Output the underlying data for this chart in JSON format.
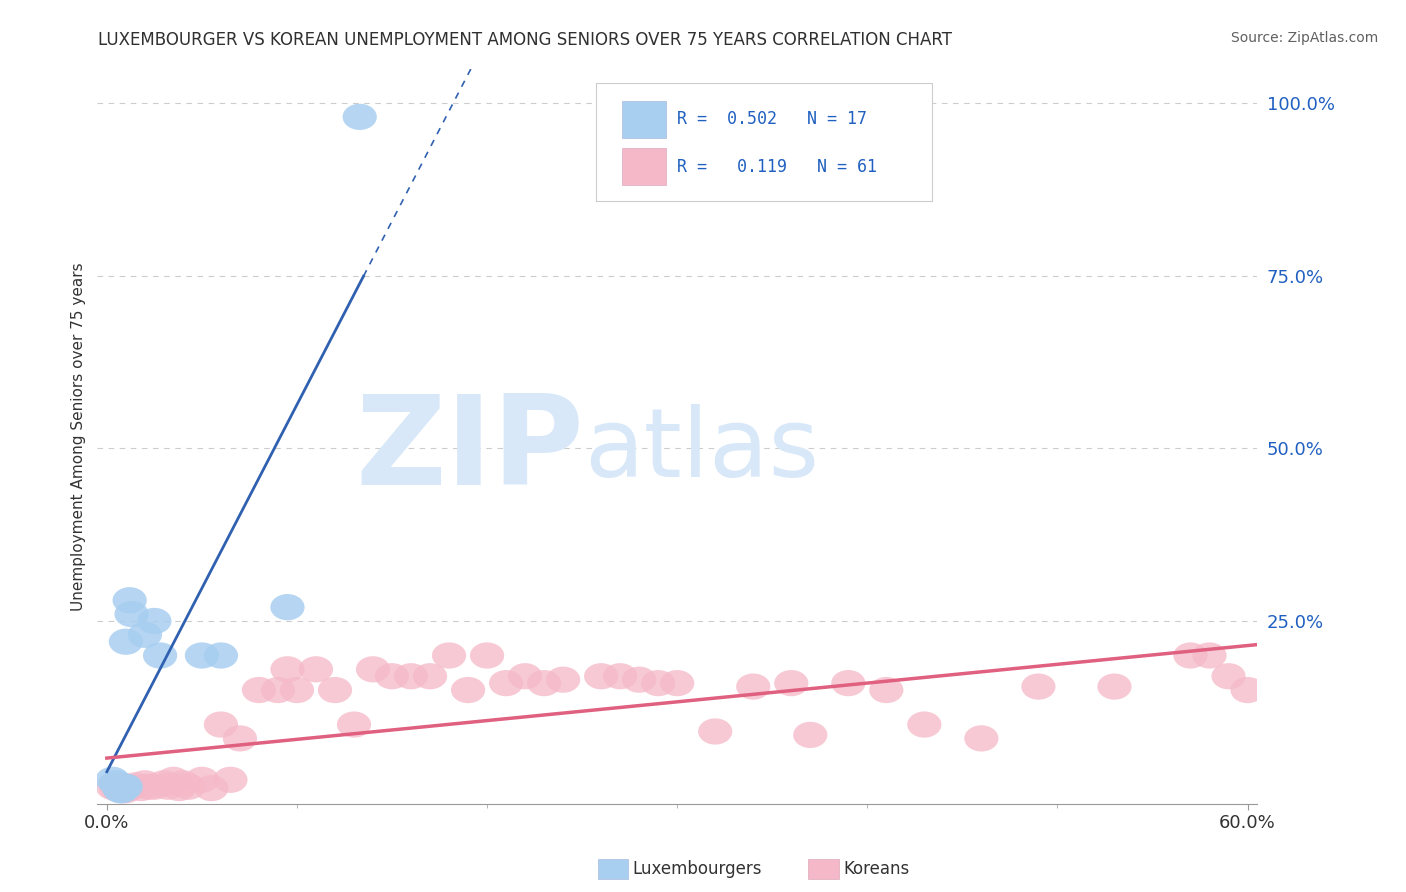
{
  "title": "LUXEMBOURGER VS KOREAN UNEMPLOYMENT AMONG SENIORS OVER 75 YEARS CORRELATION CHART",
  "source": "Source: ZipAtlas.com",
  "ylabel": "Unemployment Among Seniors over 75 years",
  "xlim": [
    -0.005,
    0.605
  ],
  "ylim": [
    -0.015,
    1.05
  ],
  "xtick_positions": [
    0.0,
    0.6
  ],
  "xticklabels": [
    "0.0%",
    "60.0%"
  ],
  "ytick_positions": [
    0.25,
    0.5,
    0.75,
    1.0
  ],
  "yticklabels_right": [
    "25.0%",
    "50.0%",
    "75.0%",
    "100.0%"
  ],
  "lux_R": "0.502",
  "lux_N": "17",
  "kor_R": "0.119",
  "kor_N": "61",
  "lux_color": "#A8CEF0",
  "kor_color": "#F5B8C8",
  "lux_line_color": "#3060B0",
  "kor_line_color": "#E06080",
  "watermark_zip": "ZIP",
  "watermark_atlas": "atlas",
  "watermark_color": "#D8E8F8",
  "gridline_color": "#CCCCCC",
  "title_color": "#303030",
  "source_color": "#606060",
  "lux_scatter_x": [
    0.003,
    0.005,
    0.006,
    0.007,
    0.008,
    0.009,
    0.01,
    0.01,
    0.012,
    0.013,
    0.02,
    0.025,
    0.028,
    0.05,
    0.06,
    0.095,
    0.133
  ],
  "lux_scatter_y": [
    0.02,
    0.015,
    0.01,
    0.005,
    0.005,
    0.01,
    0.22,
    0.01,
    0.28,
    0.26,
    0.23,
    0.25,
    0.2,
    0.2,
    0.2,
    0.27,
    0.98
  ],
  "kor_scatter_x": [
    0.003,
    0.005,
    0.007,
    0.008,
    0.009,
    0.01,
    0.01,
    0.012,
    0.015,
    0.018,
    0.02,
    0.022,
    0.025,
    0.03,
    0.032,
    0.035,
    0.038,
    0.04,
    0.043,
    0.05,
    0.055,
    0.06,
    0.065,
    0.07,
    0.08,
    0.09,
    0.095,
    0.1,
    0.11,
    0.12,
    0.13,
    0.14,
    0.15,
    0.16,
    0.17,
    0.18,
    0.19,
    0.2,
    0.21,
    0.22,
    0.23,
    0.24,
    0.26,
    0.27,
    0.28,
    0.29,
    0.3,
    0.32,
    0.34,
    0.36,
    0.37,
    0.39,
    0.41,
    0.43,
    0.46,
    0.49,
    0.53,
    0.57,
    0.58,
    0.59,
    0.6
  ],
  "kor_scatter_y": [
    0.01,
    0.008,
    0.012,
    0.005,
    0.008,
    0.005,
    0.01,
    0.008,
    0.012,
    0.008,
    0.015,
    0.01,
    0.01,
    0.015,
    0.01,
    0.02,
    0.008,
    0.015,
    0.01,
    0.02,
    0.008,
    0.1,
    0.02,
    0.08,
    0.15,
    0.15,
    0.18,
    0.15,
    0.18,
    0.15,
    0.1,
    0.18,
    0.17,
    0.17,
    0.17,
    0.2,
    0.15,
    0.2,
    0.16,
    0.17,
    0.16,
    0.165,
    0.17,
    0.17,
    0.165,
    0.16,
    0.16,
    0.09,
    0.155,
    0.16,
    0.085,
    0.16,
    0.15,
    0.1,
    0.08,
    0.155,
    0.155,
    0.2,
    0.2,
    0.17,
    0.15
  ]
}
